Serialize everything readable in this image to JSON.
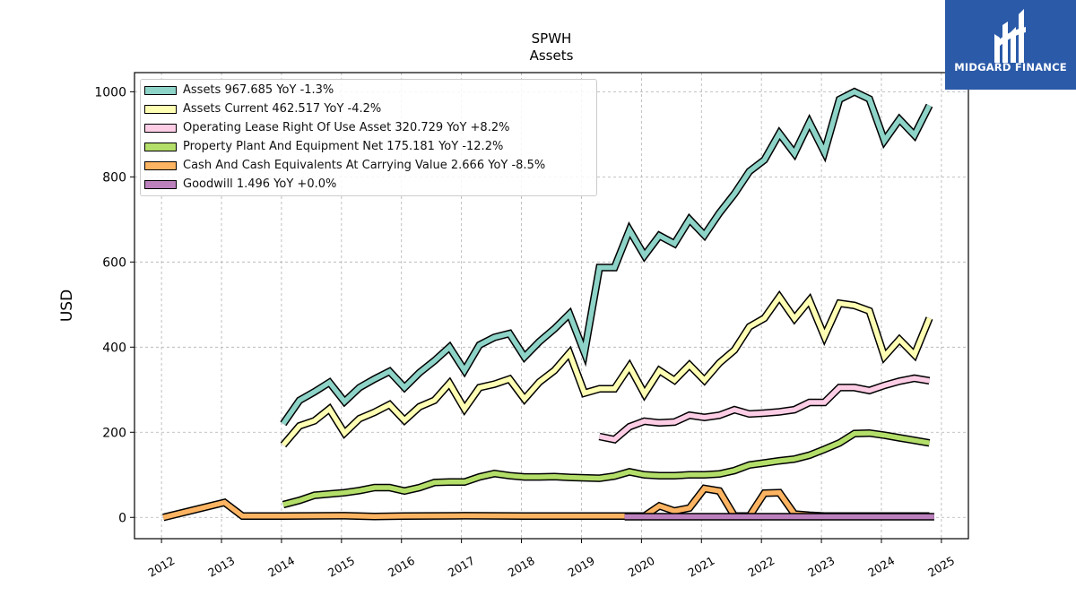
{
  "chart_data": {
    "type": "line",
    "title": "SPWH",
    "subtitle": "Assets",
    "xlabel": "",
    "ylabel": "USD",
    "xlim": [
      2011.55,
      2025.45
    ],
    "ylim": [
      -50,
      1045
    ],
    "x_ticks": [
      2012,
      2013,
      2014,
      2015,
      2016,
      2017,
      2018,
      2019,
      2020,
      2021,
      2022,
      2023,
      2024,
      2025
    ],
    "y_ticks": [
      0,
      200,
      400,
      600,
      800,
      1000
    ],
    "grid": true,
    "legend_position": "top-left",
    "series": [
      {
        "name": "Assets",
        "legend_label": "Assets  967.685 YoY -1.3%",
        "color": "#8dd3c7",
        "points": [
          [
            2014.03,
            220
          ],
          [
            2014.3,
            275
          ],
          [
            2014.55,
            295
          ],
          [
            2014.8,
            317
          ],
          [
            2015.05,
            272
          ],
          [
            2015.3,
            305
          ],
          [
            2015.55,
            325
          ],
          [
            2015.8,
            343
          ],
          [
            2016.05,
            305
          ],
          [
            2016.3,
            340
          ],
          [
            2016.55,
            368
          ],
          [
            2016.8,
            400
          ],
          [
            2017.05,
            345
          ],
          [
            2017.3,
            405
          ],
          [
            2017.55,
            423
          ],
          [
            2017.8,
            432
          ],
          [
            2018.05,
            377
          ],
          [
            2018.3,
            413
          ],
          [
            2018.55,
            443
          ],
          [
            2018.8,
            478
          ],
          [
            2019.05,
            387
          ],
          [
            2019.3,
            587
          ],
          [
            2019.55,
            587
          ],
          [
            2019.8,
            675
          ],
          [
            2020.05,
            615
          ],
          [
            2020.3,
            662
          ],
          [
            2020.55,
            643
          ],
          [
            2020.8,
            700
          ],
          [
            2021.05,
            663
          ],
          [
            2021.3,
            715
          ],
          [
            2021.55,
            760
          ],
          [
            2021.8,
            813
          ],
          [
            2022.05,
            840
          ],
          [
            2022.3,
            902
          ],
          [
            2022.55,
            855
          ],
          [
            2022.8,
            928
          ],
          [
            2023.05,
            858
          ],
          [
            2023.3,
            982
          ],
          [
            2023.55,
            1000
          ],
          [
            2023.8,
            983
          ],
          [
            2024.05,
            885
          ],
          [
            2024.3,
            935
          ],
          [
            2024.55,
            898
          ],
          [
            2024.8,
            968
          ]
        ]
      },
      {
        "name": "Assets Current",
        "legend_label": "Assets Current  462.517 YoY -4.2%",
        "color": "#ffffb3",
        "points": [
          [
            2014.03,
            170
          ],
          [
            2014.3,
            215
          ],
          [
            2014.55,
            227
          ],
          [
            2014.8,
            255
          ],
          [
            2015.05,
            198
          ],
          [
            2015.3,
            232
          ],
          [
            2015.55,
            247
          ],
          [
            2015.8,
            265
          ],
          [
            2016.05,
            228
          ],
          [
            2016.3,
            260
          ],
          [
            2016.55,
            275
          ],
          [
            2016.8,
            315
          ],
          [
            2017.05,
            255
          ],
          [
            2017.3,
            305
          ],
          [
            2017.55,
            313
          ],
          [
            2017.8,
            325
          ],
          [
            2018.05,
            278
          ],
          [
            2018.3,
            318
          ],
          [
            2018.55,
            345
          ],
          [
            2018.8,
            386
          ],
          [
            2019.05,
            292
          ],
          [
            2019.3,
            302
          ],
          [
            2019.55,
            302
          ],
          [
            2019.8,
            355
          ],
          [
            2020.05,
            290
          ],
          [
            2020.3,
            345
          ],
          [
            2020.55,
            322
          ],
          [
            2020.8,
            358
          ],
          [
            2021.05,
            322
          ],
          [
            2021.3,
            363
          ],
          [
            2021.55,
            393
          ],
          [
            2021.8,
            448
          ],
          [
            2022.05,
            468
          ],
          [
            2022.3,
            518
          ],
          [
            2022.55,
            467
          ],
          [
            2022.8,
            510
          ],
          [
            2023.05,
            425
          ],
          [
            2023.3,
            503
          ],
          [
            2023.55,
            498
          ],
          [
            2023.8,
            485
          ],
          [
            2024.05,
            378
          ],
          [
            2024.3,
            418
          ],
          [
            2024.55,
            382
          ],
          [
            2024.8,
            468
          ]
        ]
      },
      {
        "name": "Operating Lease Right Of Use Asset",
        "legend_label": "Operating Lease Right Of Use Asset  320.729 YoY +8.2%",
        "color": "#fccde5",
        "points": [
          [
            2019.3,
            190
          ],
          [
            2019.55,
            183
          ],
          [
            2019.8,
            213
          ],
          [
            2020.05,
            226
          ],
          [
            2020.3,
            222
          ],
          [
            2020.55,
            224
          ],
          [
            2020.8,
            240
          ],
          [
            2021.05,
            235
          ],
          [
            2021.3,
            240
          ],
          [
            2021.55,
            253
          ],
          [
            2021.8,
            243
          ],
          [
            2022.05,
            245
          ],
          [
            2022.3,
            248
          ],
          [
            2022.55,
            253
          ],
          [
            2022.8,
            270
          ],
          [
            2023.05,
            270
          ],
          [
            2023.3,
            305
          ],
          [
            2023.55,
            305
          ],
          [
            2023.8,
            298
          ],
          [
            2024.05,
            310
          ],
          [
            2024.3,
            320
          ],
          [
            2024.55,
            327
          ],
          [
            2024.8,
            321
          ]
        ]
      },
      {
        "name": "Property Plant And Equipment Net",
        "legend_label": "Property Plant And Equipment Net  175.181 YoY -12.2%",
        "color": "#b3de69",
        "points": [
          [
            2014.03,
            30
          ],
          [
            2014.3,
            40
          ],
          [
            2014.55,
            52
          ],
          [
            2014.8,
            55
          ],
          [
            2015.05,
            58
          ],
          [
            2015.3,
            63
          ],
          [
            2015.55,
            70
          ],
          [
            2015.8,
            70
          ],
          [
            2016.05,
            62
          ],
          [
            2016.3,
            70
          ],
          [
            2016.55,
            82
          ],
          [
            2016.8,
            83
          ],
          [
            2017.05,
            83
          ],
          [
            2017.3,
            95
          ],
          [
            2017.55,
            103
          ],
          [
            2017.8,
            98
          ],
          [
            2018.05,
            95
          ],
          [
            2018.3,
            95
          ],
          [
            2018.55,
            96
          ],
          [
            2018.8,
            94
          ],
          [
            2019.05,
            93
          ],
          [
            2019.3,
            92
          ],
          [
            2019.55,
            97
          ],
          [
            2019.8,
            107
          ],
          [
            2020.05,
            100
          ],
          [
            2020.3,
            98
          ],
          [
            2020.55,
            98
          ],
          [
            2020.8,
            100
          ],
          [
            2021.05,
            100
          ],
          [
            2021.3,
            102
          ],
          [
            2021.55,
            110
          ],
          [
            2021.8,
            123
          ],
          [
            2022.05,
            128
          ],
          [
            2022.3,
            133
          ],
          [
            2022.55,
            137
          ],
          [
            2022.8,
            146
          ],
          [
            2023.05,
            160
          ],
          [
            2023.3,
            175
          ],
          [
            2023.55,
            197
          ],
          [
            2023.8,
            198
          ],
          [
            2024.05,
            193
          ],
          [
            2024.3,
            187
          ],
          [
            2024.55,
            181
          ],
          [
            2024.8,
            175
          ]
        ]
      },
      {
        "name": "Cash And Cash Equivalents At Carrying Value",
        "legend_label": "Cash And Cash Equivalents At Carrying Value  2.666 YoY -8.5%",
        "color": "#fdb462",
        "points": [
          [
            2012.03,
            0
          ],
          [
            2013.05,
            35
          ],
          [
            2013.35,
            3
          ],
          [
            2014.03,
            3
          ],
          [
            2015.05,
            4
          ],
          [
            2015.55,
            2
          ],
          [
            2016.05,
            3
          ],
          [
            2017.05,
            4
          ],
          [
            2018.05,
            3
          ],
          [
            2019.05,
            3
          ],
          [
            2019.55,
            3
          ],
          [
            2019.8,
            3
          ],
          [
            2020.05,
            3
          ],
          [
            2020.3,
            27
          ],
          [
            2020.55,
            15
          ],
          [
            2020.8,
            22
          ],
          [
            2021.05,
            68
          ],
          [
            2021.3,
            62
          ],
          [
            2021.55,
            3
          ],
          [
            2021.8,
            3
          ],
          [
            2022.05,
            57
          ],
          [
            2022.3,
            58
          ],
          [
            2022.55,
            8
          ],
          [
            2022.8,
            5
          ],
          [
            2023.05,
            3
          ],
          [
            2024.05,
            3
          ],
          [
            2024.8,
            3
          ]
        ]
      },
      {
        "name": "Goodwill",
        "legend_label": "Goodwill  1.496 YoY +0.0%",
        "color": "#bc80bd",
        "points": [
          [
            2019.72,
            1.5
          ],
          [
            2024.88,
            1.5
          ]
        ]
      }
    ]
  },
  "logo": {
    "text": "MIDGARD FINANCE"
  }
}
